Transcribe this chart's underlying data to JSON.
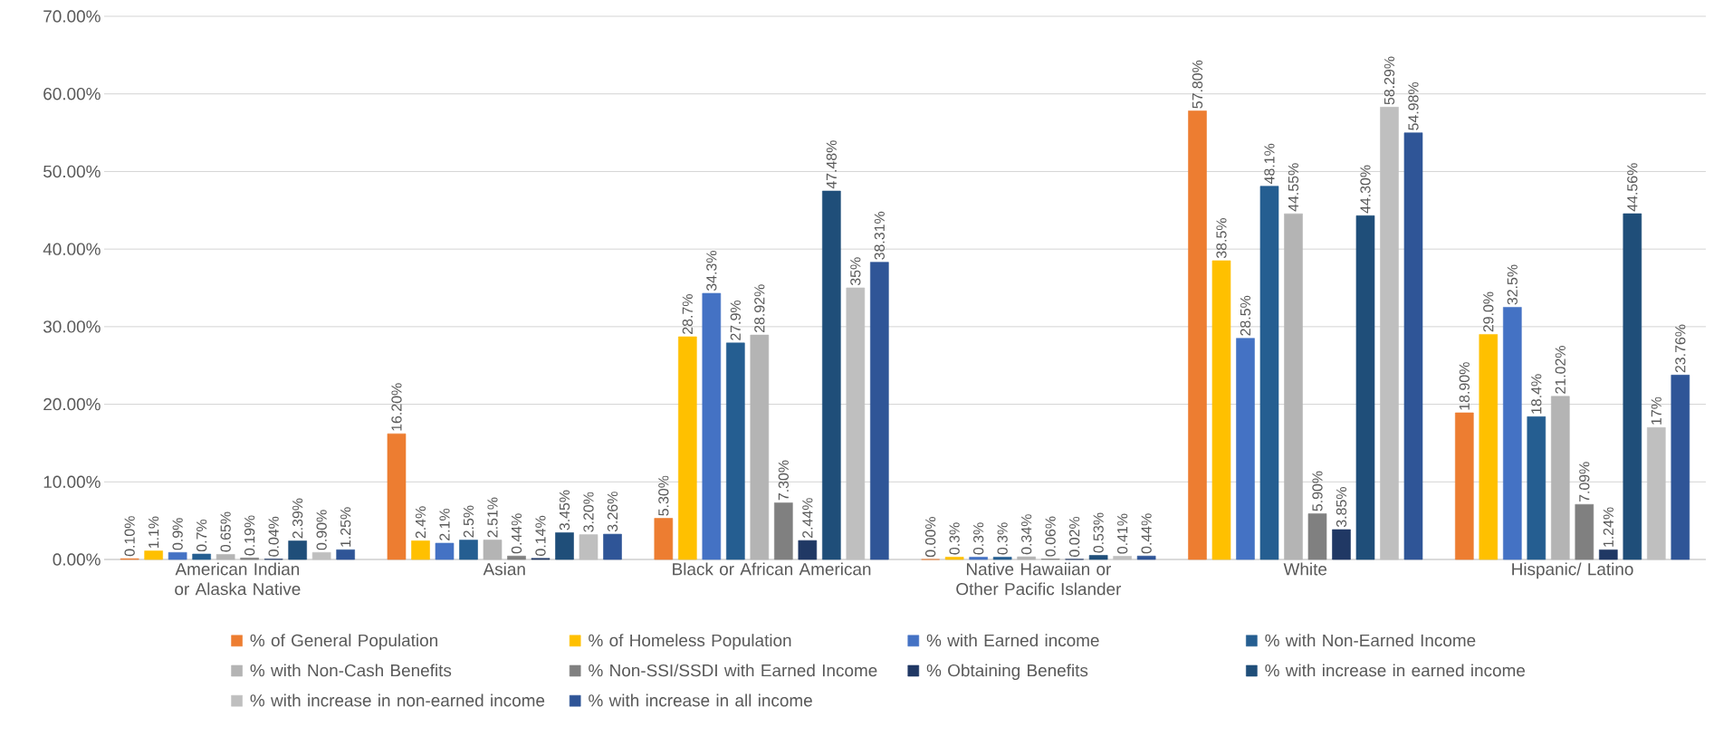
{
  "chart_data": {
    "type": "bar",
    "categories": [
      "American Indian or Alaska Native",
      "Asian",
      "Black or African American",
      "Native Hawaiian or Other Pacific Islander",
      "White",
      "Hispanic/ Latino"
    ],
    "series": [
      {
        "name": "% of General Population",
        "color": "#ed7d31",
        "values": [
          0.1,
          16.2,
          5.3,
          0.0,
          57.8,
          18.9
        ],
        "value_labels": [
          "0.10%",
          "16.20%",
          "5.30%",
          "0.00%",
          "57.80%",
          "18.90%"
        ]
      },
      {
        "name": "% of Homeless Population",
        "color": "#ffc000",
        "values": [
          1.1,
          2.4,
          28.7,
          0.3,
          38.5,
          29.0
        ],
        "value_labels": [
          "1.1%",
          "2.4%",
          "28.7%",
          "0.3%",
          "38.5%",
          "29.0%"
        ]
      },
      {
        "name": "% with Earned income",
        "color": "#4472c4",
        "values": [
          0.9,
          2.1,
          34.3,
          0.3,
          28.5,
          32.5
        ],
        "value_labels": [
          "0.9%",
          "2.1%",
          "34.3%",
          "0.3%",
          "28.5%",
          "32.5%"
        ]
      },
      {
        "name": "% with Non-Earned Income",
        "color": "#255e91",
        "values": [
          0.7,
          2.5,
          27.9,
          0.3,
          48.1,
          18.4
        ],
        "value_labels": [
          "0.7%",
          "2.5%",
          "27.9%",
          "0.3%",
          "48.1%",
          "18.4%"
        ]
      },
      {
        "name": "% with Non-Cash Benefits",
        "color": "#b4b4b4",
        "values": [
          0.65,
          2.51,
          28.92,
          0.34,
          44.55,
          21.02
        ],
        "value_labels": [
          "0.65%",
          "2.51%",
          "28.92%",
          "0.34%",
          "44.55%",
          "21.02%"
        ]
      },
      {
        "name": "% Non-SSI/SSDI with Earned Income",
        "color": "#808080",
        "values": [
          0.19,
          0.44,
          7.3,
          0.06,
          5.9,
          7.09
        ],
        "value_labels": [
          "0.19%",
          "0.44%",
          "7.30%",
          "0.06%",
          "5.90%",
          "7.09%"
        ]
      },
      {
        "name": "% Obtaining Benefits",
        "color": "#203864",
        "values": [
          0.04,
          0.14,
          2.44,
          0.02,
          3.85,
          1.24
        ],
        "value_labels": [
          "0.04%",
          "0.14%",
          "2.44%",
          "0.02%",
          "3.85%",
          "1.24%"
        ]
      },
      {
        "name": "% with increase in earned income",
        "color": "#1f4e79",
        "values": [
          2.39,
          3.45,
          47.48,
          0.53,
          44.3,
          44.56
        ],
        "value_labels": [
          "2.39%",
          "3.45%",
          "47.48%",
          "0.53%",
          "44.30%",
          "44.56%"
        ]
      },
      {
        "name": "% with increase in non-earned income",
        "color": "#bfbfbf",
        "values": [
          0.9,
          3.2,
          35,
          0.41,
          58.29,
          17
        ],
        "value_labels": [
          "0.90%",
          "3.20%",
          "35%",
          "0.41%",
          "58.29%",
          "17%"
        ]
      },
      {
        "name": "% with increase in all income",
        "color": "#2f5597",
        "values": [
          1.25,
          3.26,
          38.31,
          0.44,
          54.98,
          23.76
        ],
        "value_labels": [
          "1.25%",
          "3.26%",
          "38.31%",
          "0.44%",
          "54.98%",
          "23.76%"
        ]
      }
    ],
    "ylim": [
      0,
      70
    ],
    "yticks": [
      {
        "value": 0,
        "label": "0.00%"
      },
      {
        "value": 10,
        "label": "10.00%"
      },
      {
        "value": 20,
        "label": "20.00%"
      },
      {
        "value": 30,
        "label": "30.00%"
      },
      {
        "value": 40,
        "label": "40.00%"
      },
      {
        "value": 50,
        "label": "50.00%"
      },
      {
        "value": 60,
        "label": "60.00%"
      },
      {
        "value": 70,
        "label": "70.00%"
      }
    ],
    "grid": "y",
    "legend": "bottom"
  }
}
